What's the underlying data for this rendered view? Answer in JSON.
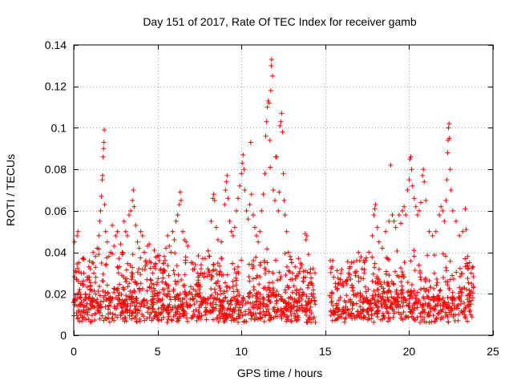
{
  "chart_data": {
    "type": "scatter",
    "title": "Day 151 of 2017, Rate Of TEC Index for receiver gamb",
    "xlabel": "GPS time / hours",
    "ylabel": "ROTI / TECUs",
    "xlim": [
      0,
      25
    ],
    "ylim": [
      0,
      0.14
    ],
    "xticks": [
      0,
      5,
      10,
      15,
      20,
      25
    ],
    "xtick_labels": [
      "0",
      "5",
      "10",
      "15",
      "20",
      "25"
    ],
    "yticks": [
      0,
      0.02,
      0.04,
      0.06,
      0.08,
      0.1,
      0.12,
      0.14
    ],
    "ytick_labels": [
      "0",
      "0.02",
      "0.04",
      "0.06",
      "0.08",
      "0.1",
      "0.12",
      "0.14"
    ],
    "grid": true,
    "marker": "+",
    "color": "#ff0000",
    "series": [
      {
        "name": "ROTI",
        "points": [
          [
            0.05,
            0.045
          ],
          [
            0.1,
            0.031
          ],
          [
            0.15,
            0.027
          ],
          [
            0.2,
            0.048
          ],
          [
            0.25,
            0.05
          ],
          [
            0.3,
            0.035
          ],
          [
            0.35,
            0.022
          ],
          [
            0.4,
            0.018
          ],
          [
            0.5,
            0.025
          ],
          [
            0.6,
            0.03
          ],
          [
            0.7,
            0.02
          ],
          [
            0.8,
            0.028
          ],
          [
            0.9,
            0.033
          ],
          [
            1.0,
            0.024
          ],
          [
            1.1,
            0.035
          ],
          [
            1.2,
            0.03
          ],
          [
            1.3,
            0.038
          ],
          [
            1.4,
            0.042
          ],
          [
            1.5,
            0.048
          ],
          [
            1.55,
            0.055
          ],
          [
            1.6,
            0.06
          ],
          [
            1.65,
            0.067
          ],
          [
            1.7,
            0.075
          ],
          [
            1.72,
            0.077
          ],
          [
            1.75,
            0.086
          ],
          [
            1.78,
            0.09
          ],
          [
            1.8,
            0.093
          ],
          [
            1.82,
            0.099
          ],
          [
            1.85,
            0.063
          ],
          [
            1.9,
            0.05
          ],
          [
            2.0,
            0.045
          ],
          [
            2.1,
            0.038
          ],
          [
            2.2,
            0.04
          ],
          [
            2.3,
            0.053
          ],
          [
            2.4,
            0.043
          ],
          [
            2.5,
            0.048
          ],
          [
            2.6,
            0.05
          ],
          [
            2.7,
            0.037
          ],
          [
            2.8,
            0.044
          ],
          [
            2.9,
            0.04
          ],
          [
            3.0,
            0.055
          ],
          [
            3.1,
            0.05
          ],
          [
            3.2,
            0.048
          ],
          [
            3.3,
            0.058
          ],
          [
            3.4,
            0.06
          ],
          [
            3.5,
            0.065
          ],
          [
            3.55,
            0.07
          ],
          [
            3.6,
            0.062
          ],
          [
            3.7,
            0.053
          ],
          [
            3.8,
            0.045
          ],
          [
            3.9,
            0.042
          ],
          [
            4.0,
            0.05
          ],
          [
            4.1,
            0.048
          ],
          [
            4.2,
            0.04
          ],
          [
            4.3,
            0.036
          ],
          [
            4.4,
            0.043
          ],
          [
            4.5,
            0.044
          ],
          [
            4.6,
            0.035
          ],
          [
            4.7,
            0.03
          ],
          [
            4.8,
            0.041
          ],
          [
            5.0,
            0.038
          ],
          [
            5.1,
            0.036
          ],
          [
            5.2,
            0.032
          ],
          [
            5.3,
            0.03
          ],
          [
            5.4,
            0.038
          ],
          [
            5.5,
            0.042
          ],
          [
            5.6,
            0.048
          ],
          [
            5.7,
            0.043
          ],
          [
            5.8,
            0.04
          ],
          [
            5.9,
            0.05
          ],
          [
            6.0,
            0.046
          ],
          [
            6.1,
            0.055
          ],
          [
            6.2,
            0.058
          ],
          [
            6.3,
            0.063
          ],
          [
            6.35,
            0.069
          ],
          [
            6.4,
            0.065
          ],
          [
            6.5,
            0.05
          ],
          [
            6.6,
            0.046
          ],
          [
            6.7,
            0.045
          ],
          [
            6.8,
            0.043
          ],
          [
            7.0,
            0.035
          ],
          [
            7.2,
            0.032
          ],
          [
            7.4,
            0.03
          ],
          [
            7.6,
            0.034
          ],
          [
            7.8,
            0.03
          ],
          [
            8.0,
            0.032
          ],
          [
            8.1,
            0.038
          ],
          [
            8.2,
            0.055
          ],
          [
            8.3,
            0.066
          ],
          [
            8.35,
            0.068
          ],
          [
            8.4,
            0.065
          ],
          [
            8.5,
            0.052
          ],
          [
            8.6,
            0.046
          ],
          [
            8.8,
            0.045
          ],
          [
            9.0,
            0.063
          ],
          [
            9.05,
            0.07
          ],
          [
            9.1,
            0.074
          ],
          [
            9.15,
            0.077
          ],
          [
            9.2,
            0.066
          ],
          [
            9.3,
            0.055
          ],
          [
            9.4,
            0.05
          ],
          [
            9.5,
            0.048
          ],
          [
            9.6,
            0.052
          ],
          [
            9.7,
            0.06
          ],
          [
            9.8,
            0.066
          ],
          [
            9.9,
            0.072
          ],
          [
            10.0,
            0.078
          ],
          [
            10.05,
            0.083
          ],
          [
            10.1,
            0.087
          ],
          [
            10.15,
            0.08
          ],
          [
            10.2,
            0.07
          ],
          [
            10.3,
            0.06
          ],
          [
            10.4,
            0.056
          ],
          [
            10.5,
            0.063
          ],
          [
            10.55,
            0.093
          ],
          [
            10.6,
            0.068
          ],
          [
            10.7,
            0.058
          ],
          [
            10.8,
            0.052
          ],
          [
            10.9,
            0.048
          ],
          [
            11.0,
            0.045
          ],
          [
            11.1,
            0.05
          ],
          [
            11.2,
            0.06
          ],
          [
            11.3,
            0.068
          ],
          [
            11.4,
            0.078
          ],
          [
            11.45,
            0.096
          ],
          [
            11.5,
            0.103
          ],
          [
            11.55,
            0.11
          ],
          [
            11.6,
            0.113
          ],
          [
            11.65,
            0.112
          ],
          [
            11.7,
            0.094
          ],
          [
            11.72,
            0.081
          ],
          [
            11.75,
            0.118
          ],
          [
            11.78,
            0.13
          ],
          [
            11.8,
            0.133
          ],
          [
            11.85,
            0.125
          ],
          [
            11.9,
            0.07
          ],
          [
            12.0,
            0.065
          ],
          [
            12.05,
            0.086
          ],
          [
            12.1,
            0.086
          ],
          [
            12.2,
            0.06
          ],
          [
            12.25,
            0.069
          ],
          [
            12.3,
            0.101
          ],
          [
            12.35,
            0.103
          ],
          [
            12.4,
            0.107
          ],
          [
            12.45,
            0.098
          ],
          [
            12.5,
            0.078
          ],
          [
            12.55,
            0.065
          ],
          [
            12.6,
            0.058
          ],
          [
            12.7,
            0.05
          ],
          [
            12.8,
            0.04
          ],
          [
            12.9,
            0.038
          ],
          [
            13.0,
            0.035
          ],
          [
            13.2,
            0.033
          ],
          [
            13.4,
            0.037
          ],
          [
            13.6,
            0.034
          ],
          [
            13.8,
            0.049
          ],
          [
            13.85,
            0.046
          ],
          [
            13.9,
            0.048
          ],
          [
            14.0,
            0.039
          ],
          [
            14.1,
            0.03
          ],
          [
            14.2,
            0.025
          ],
          [
            14.3,
            0.02
          ],
          [
            14.4,
            0.015
          ],
          [
            15.3,
            0.036
          ],
          [
            15.4,
            0.033
          ],
          [
            15.5,
            0.028
          ],
          [
            15.6,
            0.025
          ],
          [
            15.7,
            0.022
          ],
          [
            15.8,
            0.025
          ],
          [
            15.9,
            0.027
          ],
          [
            16.0,
            0.024
          ],
          [
            16.2,
            0.026
          ],
          [
            16.4,
            0.028
          ],
          [
            16.6,
            0.024
          ],
          [
            16.8,
            0.03
          ],
          [
            17.0,
            0.026
          ],
          [
            17.2,
            0.032
          ],
          [
            17.4,
            0.036
          ],
          [
            17.6,
            0.04
          ],
          [
            17.8,
            0.048
          ],
          [
            17.9,
            0.058
          ],
          [
            17.95,
            0.061
          ],
          [
            18.0,
            0.063
          ],
          [
            18.1,
            0.052
          ],
          [
            18.2,
            0.045
          ],
          [
            18.4,
            0.042
          ],
          [
            18.6,
            0.05
          ],
          [
            18.8,
            0.055
          ],
          [
            18.9,
            0.082
          ],
          [
            19.0,
            0.058
          ],
          [
            19.1,
            0.055
          ],
          [
            19.2,
            0.052
          ],
          [
            19.4,
            0.058
          ],
          [
            19.5,
            0.054
          ],
          [
            19.6,
            0.06
          ],
          [
            19.7,
            0.062
          ],
          [
            19.8,
            0.058
          ],
          [
            19.9,
            0.07
          ],
          [
            20.0,
            0.075
          ],
          [
            20.05,
            0.085
          ],
          [
            20.1,
            0.086
          ],
          [
            20.15,
            0.08
          ],
          [
            20.2,
            0.072
          ],
          [
            20.3,
            0.066
          ],
          [
            20.4,
            0.062
          ],
          [
            20.5,
            0.058
          ],
          [
            20.6,
            0.06
          ],
          [
            20.7,
            0.064
          ],
          [
            20.8,
            0.077
          ],
          [
            20.85,
            0.08
          ],
          [
            20.9,
            0.074
          ],
          [
            21.0,
            0.065
          ],
          [
            21.2,
            0.05
          ],
          [
            21.4,
            0.048
          ],
          [
            21.6,
            0.05
          ],
          [
            21.8,
            0.058
          ],
          [
            21.9,
            0.062
          ],
          [
            22.0,
            0.06
          ],
          [
            22.1,
            0.055
          ],
          [
            22.2,
            0.065
          ],
          [
            22.25,
            0.075
          ],
          [
            22.3,
            0.088
          ],
          [
            22.32,
            0.094
          ],
          [
            22.35,
            0.1
          ],
          [
            22.38,
            0.102
          ],
          [
            22.4,
            0.095
          ],
          [
            22.45,
            0.08
          ],
          [
            22.5,
            0.07
          ],
          [
            22.6,
            0.06
          ],
          [
            22.8,
            0.055
          ],
          [
            23.0,
            0.048
          ],
          [
            23.2,
            0.05
          ],
          [
            23.35,
            0.061
          ],
          [
            23.4,
            0.051
          ],
          [
            23.5,
            0.038
          ],
          [
            23.6,
            0.035
          ],
          [
            23.7,
            0.03
          ],
          [
            23.8,
            0.033
          ]
        ]
      }
    ]
  }
}
